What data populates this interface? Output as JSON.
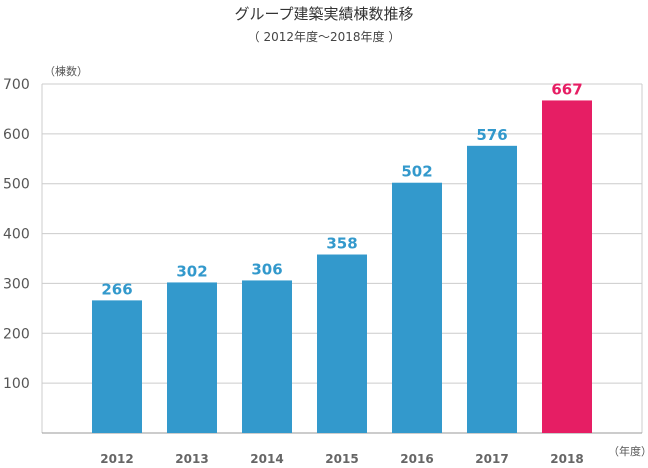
{
  "chart_data": {
    "type": "bar",
    "title": "グループ建築実績棟数推移",
    "subtitle": "（ 2012年度～2018年度 ）",
    "ylabel": "（棟数）",
    "xlabel": "（年度）",
    "categories": [
      "2012",
      "2013",
      "2014",
      "2015",
      "2016",
      "2017",
      "2018"
    ],
    "values": [
      266,
      302,
      306,
      358,
      502,
      576,
      667
    ],
    "ylim": [
      0,
      700
    ],
    "yticks": [
      "100",
      "200",
      "300",
      "400",
      "500",
      "600",
      "700"
    ],
    "grid": true,
    "colors": {
      "bar": "#3399cc",
      "highlight": "#e61e64",
      "label": "#3399cc",
      "highlight_label": "#e61e64",
      "grid": "#cccccc"
    },
    "highlight_index": 6
  }
}
